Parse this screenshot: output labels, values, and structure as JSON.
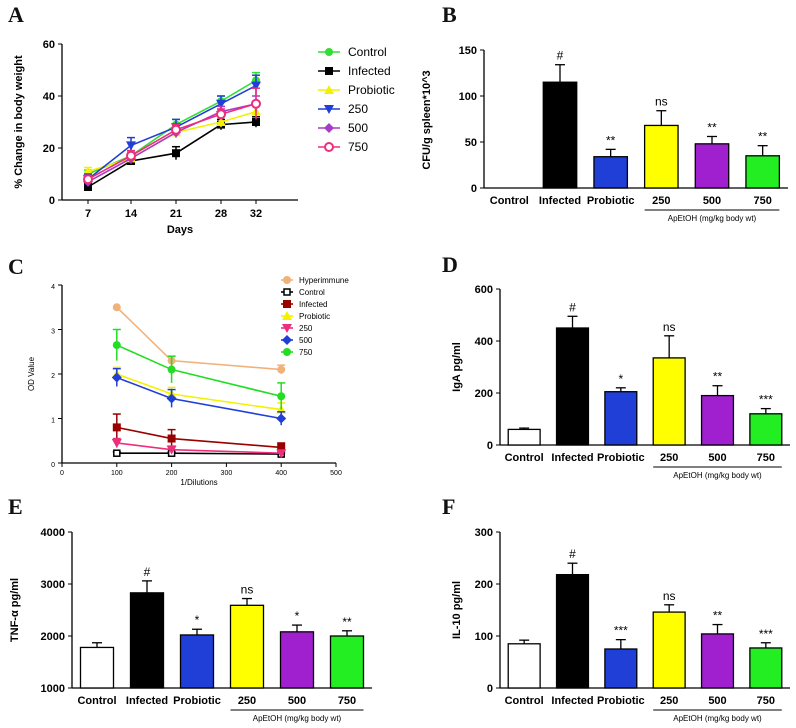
{
  "chart_data": [
    {
      "panel": "A",
      "type": "line",
      "xlabel": "Days",
      "ylabel": "% Change in body weight",
      "ylim": [
        0,
        60
      ],
      "yticks": [
        0,
        20,
        40,
        60
      ],
      "x": [
        7,
        14,
        21,
        28,
        32
      ],
      "series": [
        {
          "name": "Control",
          "color": "#33dd33",
          "marker": "circle",
          "values": [
            10,
            17,
            29,
            38,
            46
          ],
          "err": [
            1.5,
            1.5,
            2,
            2,
            3
          ]
        },
        {
          "name": "Infected",
          "color": "#000000",
          "marker": "square",
          "values": [
            5,
            15,
            18,
            29,
            30
          ],
          "err": [
            1.5,
            1.5,
            2.5,
            2,
            2
          ]
        },
        {
          "name": "Probiotic",
          "color": "#f2f200",
          "marker": "triangle-up",
          "values": [
            11,
            16,
            26,
            30,
            34
          ],
          "err": [
            1.5,
            1.5,
            2,
            2,
            2
          ]
        },
        {
          "name": "250",
          "color": "#1f3fd6",
          "marker": "triangle-down",
          "values": [
            8,
            21,
            28,
            37,
            44
          ],
          "err": [
            2,
            3,
            3,
            3,
            4
          ]
        },
        {
          "name": "500",
          "color": "#a63cc6",
          "marker": "diamond",
          "values": [
            7,
            16,
            26,
            34,
            37
          ],
          "err": [
            1.5,
            2,
            2,
            2,
            3
          ]
        },
        {
          "name": "750",
          "color": "#ee2e7c",
          "marker": "circle-open",
          "values": [
            8,
            17,
            27,
            33,
            37
          ],
          "err": [
            1.5,
            2,
            2,
            2,
            6
          ]
        }
      ]
    },
    {
      "panel": "B",
      "type": "bar",
      "ylabel": "CFU/g spleen*10^3",
      "ylim": [
        0,
        150
      ],
      "yticks": [
        0,
        50,
        100,
        150
      ],
      "categories": [
        "Control",
        "Infected",
        "Probiotic",
        "250",
        "500",
        "750"
      ],
      "values": [
        0,
        115,
        34,
        68,
        48,
        35
      ],
      "err": [
        0,
        19,
        8,
        16,
        8,
        11
      ],
      "colors": [
        "#ffffff",
        "#000000",
        "#1f3fd6",
        "#ffff00",
        "#a020d0",
        "#22ee22"
      ],
      "annotations": [
        "",
        "#",
        "**",
        "ns",
        "**",
        "**"
      ],
      "bracket_label": "ApEtOH (mg/kg body wt)"
    },
    {
      "panel": "C",
      "type": "line",
      "xlabel": "1/Dilutions",
      "ylabel": "OD Value",
      "xlim": [
        0,
        500
      ],
      "xticks": [
        0,
        100,
        200,
        300,
        400,
        500
      ],
      "ylim": [
        0,
        4
      ],
      "yticks": [
        0,
        1,
        2,
        3,
        4
      ],
      "x": [
        100,
        200,
        400
      ],
      "series": [
        {
          "name": "Hyperimmune",
          "color": "#f0b27a",
          "marker": "circle",
          "values": [
            3.5,
            2.3,
            2.1
          ],
          "err": [
            0,
            0.1,
            0.1
          ]
        },
        {
          "name": "Control",
          "color": "#000000",
          "marker": "square-open",
          "values": [
            0.22,
            0.22,
            0.2
          ],
          "err": [
            0.03,
            0.03,
            0.03
          ]
        },
        {
          "name": "Infected",
          "color": "#990000",
          "marker": "square",
          "values": [
            0.8,
            0.55,
            0.35
          ],
          "err": [
            0.3,
            0.2,
            0.1
          ]
        },
        {
          "name": "Probiotic",
          "color": "#f2f200",
          "marker": "triangle-up",
          "values": [
            2.0,
            1.55,
            1.2
          ],
          "err": [
            0.15,
            0.15,
            0.15
          ]
        },
        {
          "name": "250",
          "color": "#ee2e7c",
          "marker": "triangle-down",
          "values": [
            0.45,
            0.3,
            0.22
          ],
          "err": [
            0.1,
            0.08,
            0.05
          ]
        },
        {
          "name": "500",
          "color": "#1f3fd6",
          "marker": "diamond",
          "values": [
            1.92,
            1.45,
            1.0
          ],
          "err": [
            0.2,
            0.2,
            0.15
          ]
        },
        {
          "name": "750",
          "color": "#22dd22",
          "marker": "circle",
          "values": [
            2.65,
            2.1,
            1.5
          ],
          "err": [
            0.35,
            0.3,
            0.3
          ]
        }
      ]
    },
    {
      "panel": "D",
      "type": "bar",
      "ylabel": "IgA pg/ml",
      "ylim": [
        0,
        600
      ],
      "yticks": [
        0,
        200,
        400,
        600
      ],
      "categories": [
        "Control",
        "Infected",
        "Probiotic",
        "250",
        "500",
        "750"
      ],
      "values": [
        60,
        450,
        205,
        335,
        190,
        120
      ],
      "err": [
        5,
        45,
        15,
        85,
        38,
        20
      ],
      "colors": [
        "#ffffff",
        "#000000",
        "#1f3fd6",
        "#ffff00",
        "#a020d0",
        "#22ee22"
      ],
      "annotations": [
        "",
        "#",
        "*",
        "ns",
        "**",
        "***"
      ],
      "bracket_label": "ApEtOH (mg/kg body wt)"
    },
    {
      "panel": "E",
      "type": "bar",
      "ylabel": "TNF-α pg/ml",
      "ylim": [
        1000,
        4000
      ],
      "yticks": [
        1000,
        2000,
        3000,
        4000
      ],
      "categories": [
        "Control",
        "Infected",
        "Probiotic",
        "250",
        "500",
        "750"
      ],
      "values": [
        1780,
        2830,
        2020,
        2590,
        2080,
        2000
      ],
      "err": [
        90,
        230,
        110,
        130,
        130,
        100
      ],
      "colors": [
        "#ffffff",
        "#000000",
        "#1f3fd6",
        "#ffff00",
        "#a020d0",
        "#22ee22"
      ],
      "annotations": [
        "",
        "#",
        "*",
        "ns",
        "*",
        "**"
      ],
      "bracket_label": "ApEtOH (mg/kg body wt)"
    },
    {
      "panel": "F",
      "type": "bar",
      "ylabel": "IL-10 pg/ml",
      "ylim": [
        0,
        300
      ],
      "yticks": [
        0,
        100,
        200,
        300
      ],
      "categories": [
        "Control",
        "Infected",
        "Probiotic",
        "250",
        "500",
        "750"
      ],
      "values": [
        85,
        218,
        75,
        146,
        104,
        77
      ],
      "err": [
        7,
        22,
        18,
        14,
        18,
        10
      ],
      "colors": [
        "#ffffff",
        "#000000",
        "#1f3fd6",
        "#ffff00",
        "#a020d0",
        "#22ee22"
      ],
      "annotations": [
        "",
        "#",
        "***",
        "ns",
        "**",
        "***"
      ],
      "bracket_label": "ApEtOH (mg/kg body wt)"
    }
  ]
}
